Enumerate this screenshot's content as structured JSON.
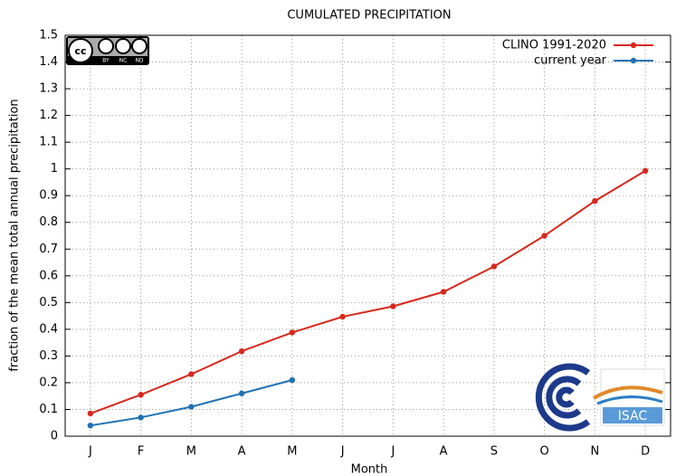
{
  "chart_data": {
    "type": "line",
    "title": "CUMULATED PRECIPITATION",
    "x_label": "Month",
    "y_label": "fraction of the mean total annual precipitation",
    "categories": [
      "J",
      "F",
      "M",
      "A",
      "M",
      "J",
      "J",
      "A",
      "S",
      "O",
      "N",
      "D"
    ],
    "series": [
      {
        "name": "CLINO 1991-2020",
        "color": "#d8281c",
        "values": [
          0.085,
          0.155,
          0.232,
          0.318,
          0.388,
          0.447,
          0.486,
          0.54,
          0.635,
          0.75,
          0.88,
          0.993
        ]
      },
      {
        "name": "current year",
        "color": "#1f72b4",
        "values": [
          0.04,
          0.07,
          0.11,
          0.16,
          0.21,
          null,
          null,
          null,
          null,
          null,
          null,
          null
        ]
      }
    ],
    "ylim": [
      0,
      1.5
    ],
    "yticks": [
      0,
      0.1,
      0.2,
      0.3,
      0.4,
      0.5,
      0.6,
      0.7,
      0.8,
      0.9,
      1,
      1.1,
      1.2,
      1.3,
      1.4,
      1.5
    ],
    "grid": true,
    "legend": "top-right",
    "logos": {
      "license": [
        "BY",
        "NC",
        "ND"
      ],
      "institute": "ISAC"
    }
  }
}
